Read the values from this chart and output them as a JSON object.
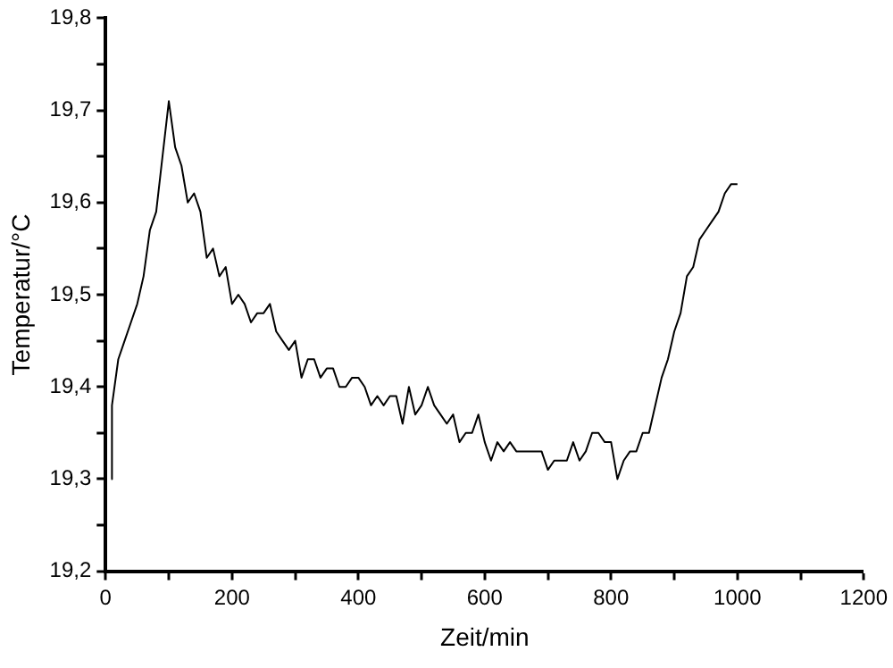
{
  "chart_data": {
    "type": "line",
    "xlabel": "Zeit/min",
    "ylabel": "Temperatur/°C",
    "x": [
      9,
      10,
      20,
      30,
      40,
      50,
      60,
      70,
      80,
      90,
      100,
      110,
      120,
      130,
      140,
      150,
      160,
      170,
      180,
      190,
      200,
      210,
      220,
      230,
      240,
      250,
      260,
      270,
      280,
      290,
      300,
      310,
      320,
      330,
      340,
      350,
      360,
      370,
      380,
      390,
      400,
      410,
      420,
      430,
      440,
      450,
      460,
      470,
      480,
      490,
      500,
      510,
      520,
      530,
      540,
      550,
      560,
      570,
      580,
      590,
      600,
      610,
      620,
      630,
      640,
      650,
      660,
      670,
      680,
      690,
      700,
      710,
      720,
      730,
      740,
      750,
      760,
      770,
      780,
      790,
      800,
      810,
      820,
      830,
      840,
      850,
      860,
      870,
      880,
      890,
      900,
      910,
      920,
      930,
      940,
      950,
      960,
      970,
      980,
      990,
      1000
    ],
    "series": [
      {
        "color": "#000000",
        "values": [
          19.3,
          19.38,
          19.43,
          19.45,
          19.47,
          19.49,
          19.52,
          19.57,
          19.59,
          19.65,
          19.71,
          19.66,
          19.64,
          19.6,
          19.61,
          19.59,
          19.54,
          19.55,
          19.52,
          19.53,
          19.49,
          19.5,
          19.49,
          19.47,
          19.48,
          19.48,
          19.49,
          19.46,
          19.45,
          19.44,
          19.45,
          19.41,
          19.43,
          19.43,
          19.41,
          19.42,
          19.42,
          19.4,
          19.4,
          19.41,
          19.41,
          19.4,
          19.38,
          19.39,
          19.38,
          19.39,
          19.39,
          19.36,
          19.4,
          19.37,
          19.38,
          19.4,
          19.38,
          19.37,
          19.36,
          19.37,
          19.34,
          19.35,
          19.35,
          19.37,
          19.34,
          19.32,
          19.34,
          19.33,
          19.34,
          19.33,
          19.33,
          19.33,
          19.33,
          19.33,
          19.31,
          19.32,
          19.32,
          19.32,
          19.34,
          19.32,
          19.33,
          19.35,
          19.35,
          19.34,
          19.34,
          19.3,
          19.32,
          19.33,
          19.33,
          19.35,
          19.35,
          19.38,
          19.41,
          19.43,
          19.46,
          19.48,
          19.52,
          19.53,
          19.56,
          19.57,
          19.58,
          19.59,
          19.61,
          19.62,
          19.62
        ]
      }
    ],
    "xlim": [
      0,
      1200
    ],
    "xticks": [
      0,
      {
        "value": 100,
        "label": null
      },
      200,
      {
        "value": 300,
        "label": null
      },
      400,
      {
        "value": 500,
        "label": null
      },
      600,
      {
        "value": 700,
        "label": null
      },
      800,
      {
        "value": 900,
        "label": null
      },
      1000,
      {
        "value": 1100,
        "label": null
      },
      1200
    ],
    "ylim": [
      19.2,
      19.8
    ],
    "yticks": [
      {
        "value": 19.2,
        "label": "19,2"
      },
      {
        "value": 19.25,
        "label": null
      },
      {
        "value": 19.3,
        "label": "19,3"
      },
      {
        "value": 19.35,
        "label": null
      },
      {
        "value": 19.4,
        "label": "19,4"
      },
      {
        "value": 19.45,
        "label": null
      },
      {
        "value": 19.5,
        "label": "19,5"
      },
      {
        "value": 19.55,
        "label": null
      },
      {
        "value": 19.6,
        "label": "19,6"
      },
      {
        "value": 19.65,
        "label": null
      },
      {
        "value": 19.7,
        "label": "19,7"
      },
      {
        "value": 19.75,
        "label": null
      },
      {
        "value": 19.8,
        "label": "19,8"
      }
    ],
    "grid": false,
    "legend": false,
    "marker": "none",
    "line_style": "solid"
  }
}
